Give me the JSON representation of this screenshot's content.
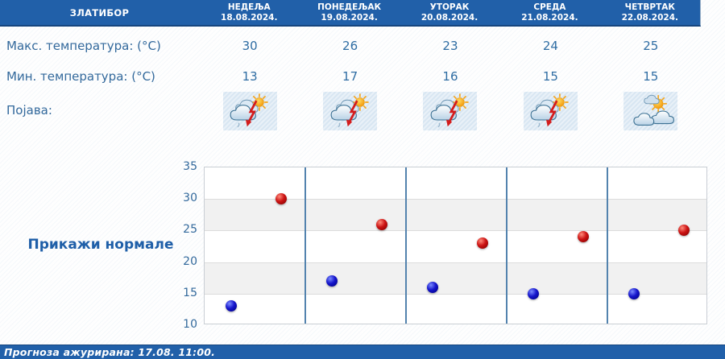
{
  "app": {
    "station": "ЗЛАТИБОР"
  },
  "table": {
    "rows": {
      "max_label": "Макс. температура: (°C)",
      "min_label": "Мин. температура: (°C)",
      "phenomenon_label": "Појава:"
    },
    "days": [
      {
        "name": "НЕДЕЉА",
        "date": "18.08.2024.",
        "max": "30",
        "min": "13",
        "icon": "thunder-sun"
      },
      {
        "name": "ПОНЕДЕЉАК",
        "date": "19.08.2024.",
        "max": "26",
        "min": "17",
        "icon": "thunder-sun"
      },
      {
        "name": "УТОРАК",
        "date": "20.08.2024.",
        "max": "23",
        "min": "16",
        "icon": "thunder-sun"
      },
      {
        "name": "СРЕДА",
        "date": "21.08.2024.",
        "max": "24",
        "min": "15",
        "icon": "thunder-sun"
      },
      {
        "name": "ЧЕТВРТАК",
        "date": "22.08.2024.",
        "max": "25",
        "min": "15",
        "icon": "partly-cloudy"
      }
    ]
  },
  "normals_link": "Прикажи нормале",
  "footer": {
    "updated_text": "Прогноза ажурирана:  17.08. 11:00."
  },
  "chart_data": {
    "type": "scatter",
    "categories": [
      "НЕДЕЉА 18.08.2024.",
      "ПОНЕДЕЉАК 19.08.2024.",
      "УТОРАК 20.08.2024.",
      "СРЕДА 21.08.2024.",
      "ЧЕТВРТАК 22.08.2024."
    ],
    "series": [
      {
        "name": "Макс. температура (°C)",
        "color": "#cc1414",
        "highlight": "#ff8a7a",
        "shadow": "#8c0000",
        "values": [
          30,
          26,
          23,
          24,
          25
        ]
      },
      {
        "name": "Мин. температура (°C)",
        "color": "#1616cc",
        "highlight": "#7a8aff",
        "shadow": "#00008c",
        "values": [
          13,
          17,
          16,
          15,
          15
        ]
      }
    ],
    "ylim": [
      10,
      35
    ],
    "yticks": [
      10,
      15,
      20,
      25,
      30,
      35
    ],
    "shaded_bands": [
      [
        15,
        20
      ],
      [
        25,
        30
      ]
    ],
    "grid": "horizontal gridlines at yticks, vertical day separators",
    "legend": "none"
  },
  "colors": {
    "header_bg": "#2160a9",
    "header_text": "#ffffff",
    "label_text": "#33699c",
    "link_text": "#1f5fa8",
    "separator": "#5383ae",
    "band": "#f1f1f1",
    "gridline": "#dcdcdc",
    "footer_bg": "#2160a9"
  }
}
